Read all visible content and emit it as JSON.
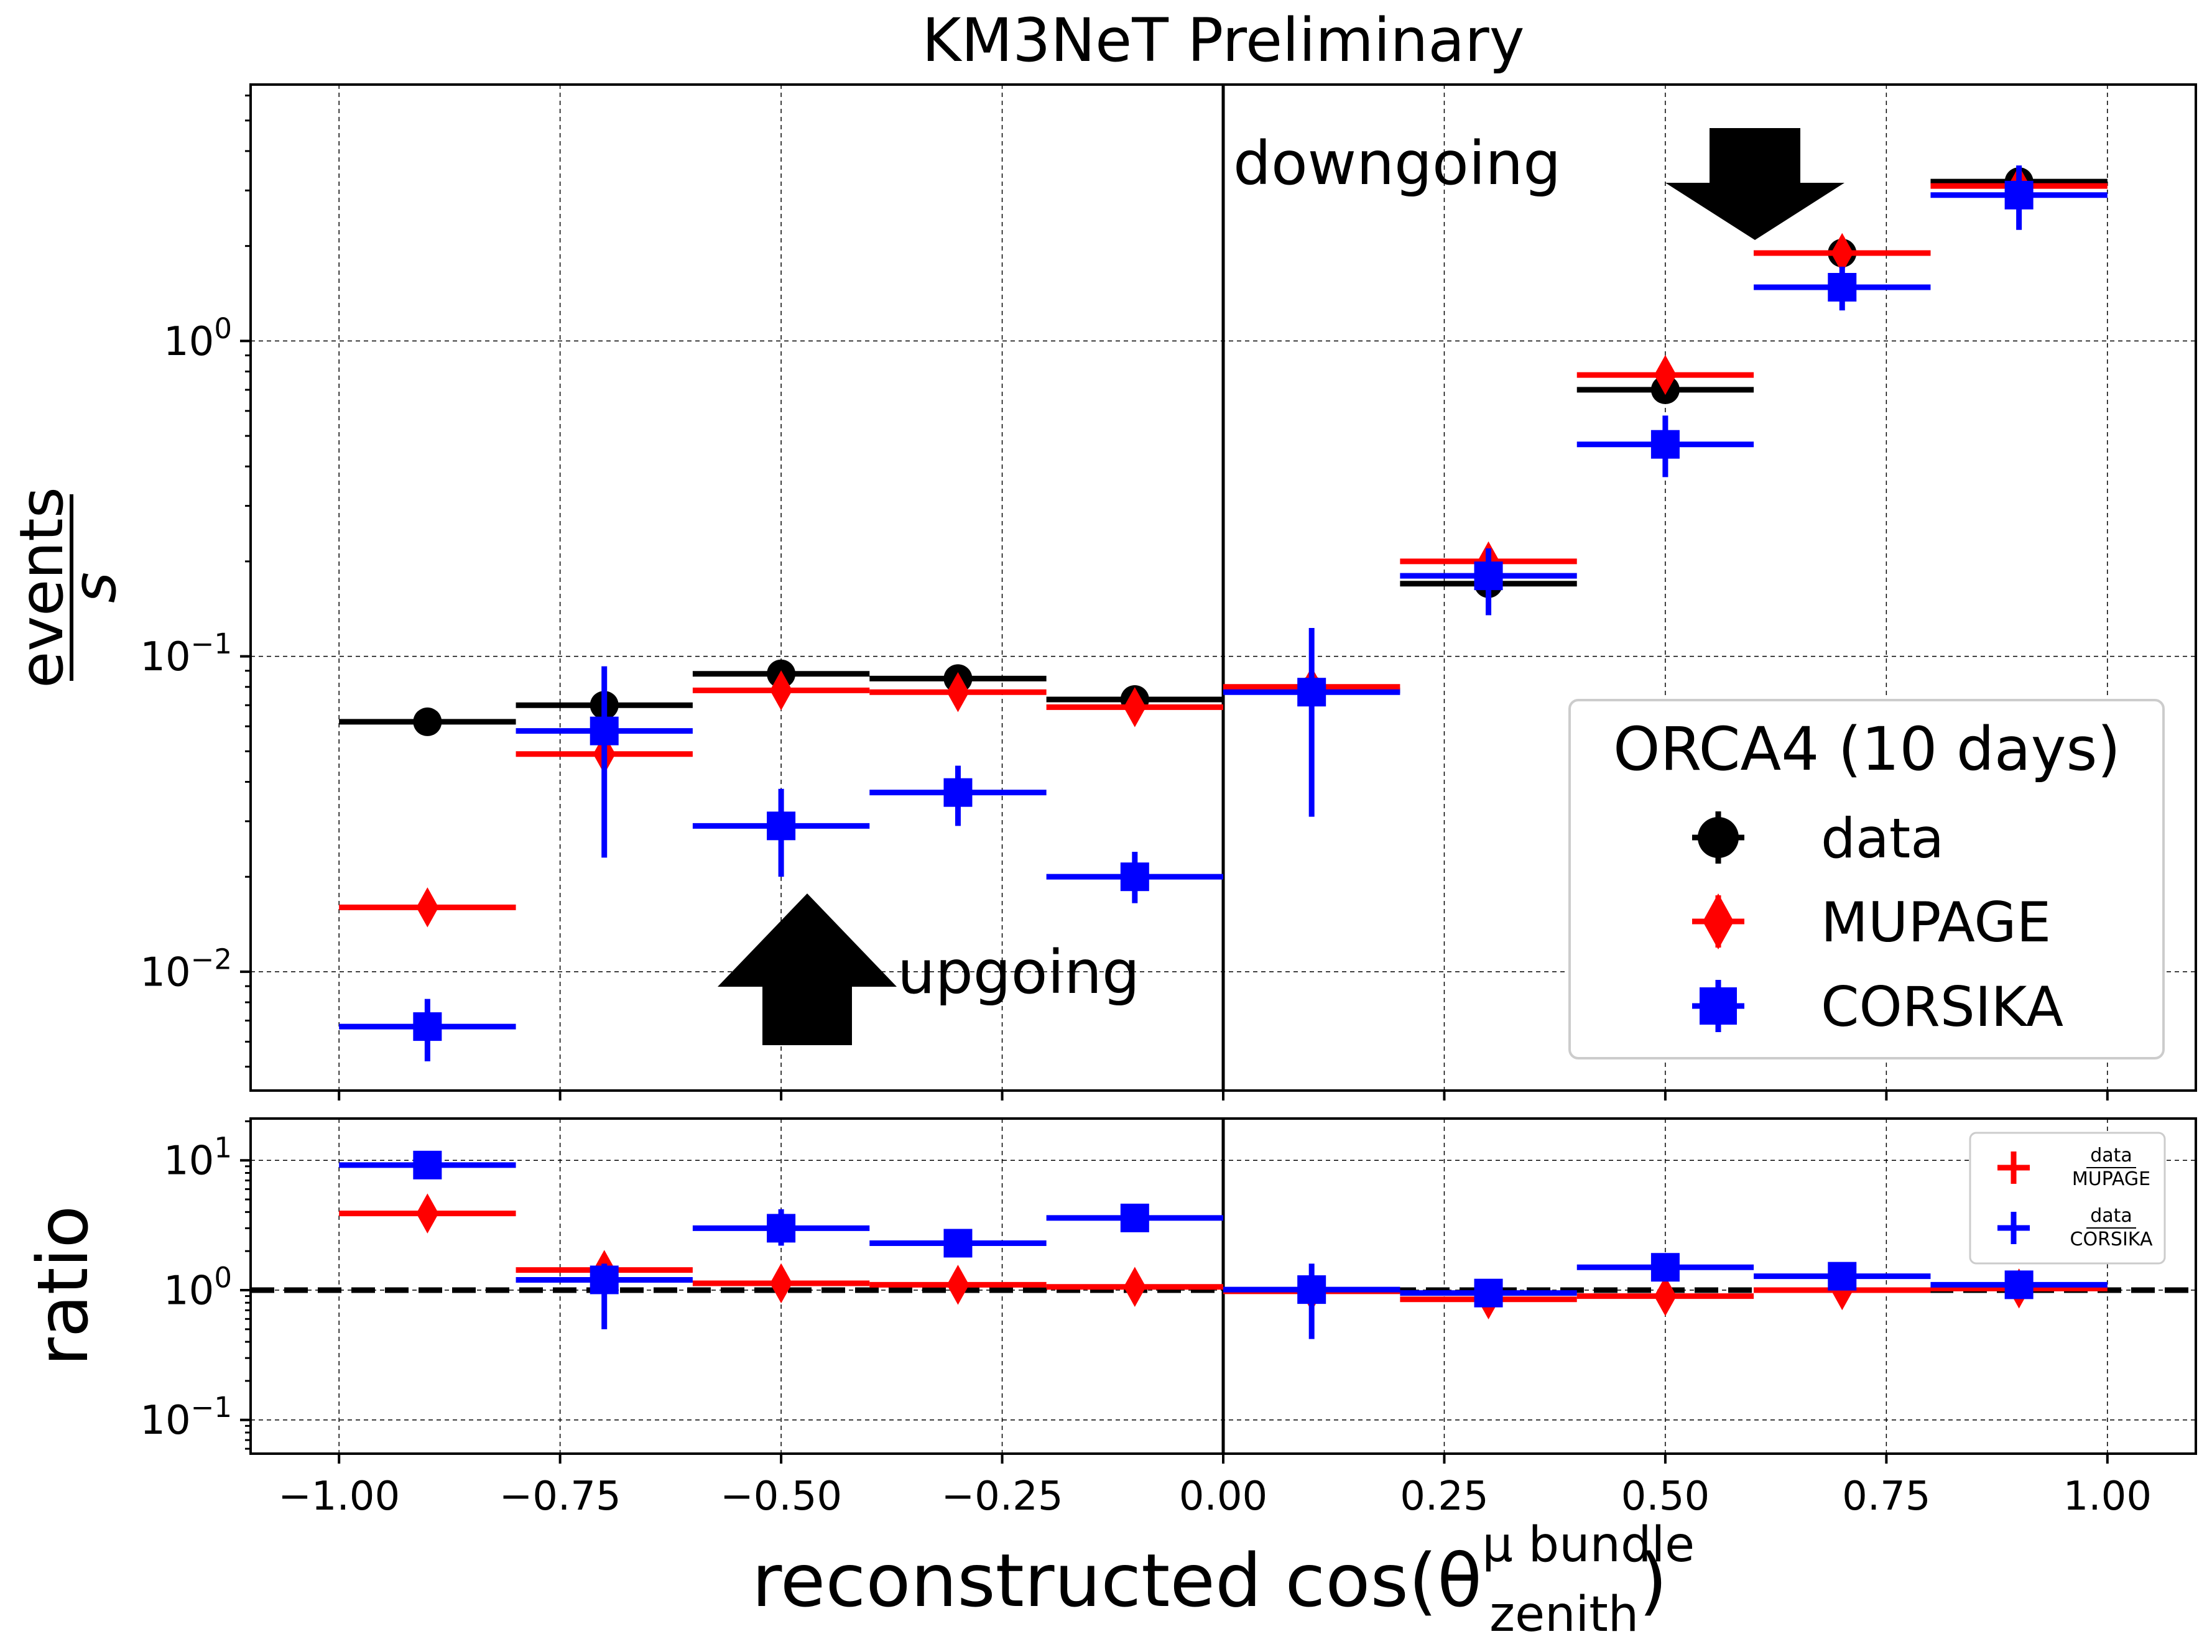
{
  "chart_data": {
    "title": "KM3NeT Preliminary",
    "xlabel_prefix": "reconstructed cos(θ",
    "xlabel_sup": "μ bundle",
    "xlabel_sub": "zenith",
    "xlabel_suffix": ")",
    "xlim": [
      -1.1,
      1.1
    ],
    "xticks": [
      "−1.00",
      "−0.75",
      "−0.50",
      "−0.25",
      "0.00",
      "0.25",
      "0.50",
      "0.75",
      "1.00"
    ],
    "xtick_values": [
      -1.0,
      -0.75,
      -0.5,
      -0.25,
      0.0,
      0.25,
      0.5,
      0.75,
      1.0
    ],
    "bin_width": 0.2,
    "top": {
      "type": "scatter",
      "yscale": "log",
      "ylim": [
        0.0042,
        6.5
      ],
      "ylabel_num": "events",
      "ylabel_den": "s",
      "ytick_base": "10",
      "yticks": [
        {
          "value": 1.0,
          "exp": "0"
        },
        {
          "value": 0.1,
          "exp": "−1"
        },
        {
          "value": 0.01,
          "exp": "−2"
        }
      ],
      "annotations": {
        "down": "downgoing",
        "up": "upgoing"
      },
      "legend": {
        "title": "ORCA4 (10 days)",
        "entries": [
          "data",
          "MUPAGE",
          "CORSIKA"
        ],
        "location": "lower right"
      },
      "series": [
        {
          "name": "data",
          "color": "#000000",
          "marker": "circle",
          "x": [
            -0.9,
            -0.7,
            -0.5,
            -0.3,
            -0.1,
            0.1,
            0.3,
            0.5,
            0.7,
            0.9
          ],
          "y": [
            0.062,
            0.07,
            0.088,
            0.085,
            0.073,
            0.078,
            0.17,
            0.7,
            1.9,
            3.2
          ],
          "yerr_low": [
            0.062,
            0.07,
            0.088,
            0.085,
            0.073,
            0.078,
            0.17,
            0.7,
            1.9,
            3.2
          ],
          "yerr_high": [
            0.062,
            0.07,
            0.088,
            0.085,
            0.073,
            0.078,
            0.17,
            0.7,
            1.9,
            3.2
          ]
        },
        {
          "name": "MUPAGE",
          "color": "#ff0000",
          "marker": "diamond",
          "x": [
            -0.9,
            -0.7,
            -0.5,
            -0.3,
            -0.1,
            0.1,
            0.3,
            0.5,
            0.7,
            0.9
          ],
          "y": [
            0.016,
            0.049,
            0.078,
            0.077,
            0.069,
            0.08,
            0.2,
            0.78,
            1.9,
            3.1
          ],
          "yerr_low": [
            0.016,
            0.046,
            0.078,
            0.077,
            0.069,
            0.08,
            0.19,
            0.77,
            1.85,
            3.05
          ],
          "yerr_high": [
            0.016,
            0.053,
            0.078,
            0.077,
            0.069,
            0.08,
            0.21,
            0.79,
            1.95,
            3.15
          ]
        },
        {
          "name": "CORSIKA",
          "color": "#0000ff",
          "marker": "square",
          "x": [
            -0.9,
            -0.7,
            -0.5,
            -0.3,
            -0.1,
            0.1,
            0.3,
            0.5,
            0.7,
            0.9
          ],
          "y": [
            0.0067,
            0.058,
            0.029,
            0.037,
            0.02,
            0.077,
            0.18,
            0.47,
            1.48,
            2.9
          ],
          "yerr_low": [
            0.0052,
            0.023,
            0.02,
            0.029,
            0.0165,
            0.031,
            0.135,
            0.37,
            1.25,
            2.25
          ],
          "yerr_high": [
            0.0082,
            0.093,
            0.038,
            0.045,
            0.024,
            0.123,
            0.22,
            0.58,
            1.72,
            3.6
          ]
        }
      ]
    },
    "bottom": {
      "type": "scatter",
      "yscale": "log",
      "ylim": [
        0.055,
        21
      ],
      "ylabel": "ratio",
      "ytick_base": "10",
      "yticks": [
        {
          "value": 10,
          "exp": "1"
        },
        {
          "value": 1,
          "exp": "0"
        },
        {
          "value": 0.1,
          "exp": "−1"
        }
      ],
      "reference_line": 1.0,
      "legend": {
        "entries": [
          {
            "num": "data",
            "den": "MUPAGE"
          },
          {
            "num": "data",
            "den": "CORSIKA"
          }
        ],
        "location": "upper right"
      },
      "series": [
        {
          "name": "data/MUPAGE",
          "color": "#ff0000",
          "marker": "diamond",
          "x": [
            -0.9,
            -0.7,
            -0.5,
            -0.3,
            -0.1,
            0.1,
            0.3,
            0.5,
            0.7,
            0.9
          ],
          "y": [
            3.9,
            1.43,
            1.13,
            1.1,
            1.06,
            0.98,
            0.85,
            0.9,
            1.0,
            1.03
          ],
          "yerr_low": [
            3.9,
            1.25,
            1.13,
            1.1,
            1.06,
            0.98,
            0.8,
            0.9,
            1.0,
            1.03
          ],
          "yerr_high": [
            3.9,
            1.65,
            1.13,
            1.1,
            1.06,
            0.98,
            0.9,
            0.9,
            1.0,
            1.03
          ]
        },
        {
          "name": "data/CORSIKA",
          "color": "#0000ff",
          "marker": "square",
          "x": [
            -0.9,
            -0.7,
            -0.5,
            -0.3,
            -0.1,
            0.1,
            0.3,
            0.5,
            0.7,
            0.9
          ],
          "y": [
            9.2,
            1.2,
            3.0,
            2.3,
            3.6,
            1.01,
            0.95,
            1.5,
            1.28,
            1.1
          ],
          "yerr_low": [
            9.2,
            0.5,
            2.2,
            2.3,
            3.6,
            0.42,
            0.95,
            1.5,
            1.28,
            1.1
          ],
          "yerr_high": [
            9.2,
            1.6,
            4.2,
            2.3,
            3.6,
            1.6,
            0.95,
            1.5,
            1.28,
            1.1
          ]
        }
      ]
    }
  }
}
